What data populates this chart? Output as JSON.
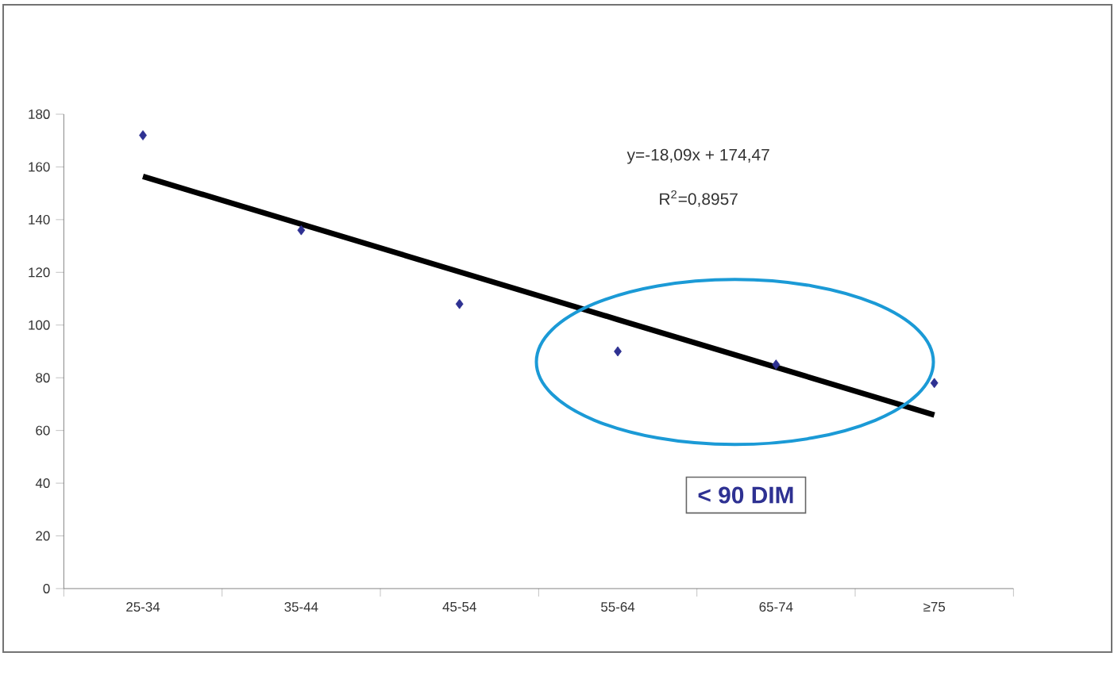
{
  "chart_data": {
    "type": "scatter",
    "categories": [
      "25-34",
      "35-44",
      "45-54",
      "55-64",
      "65-74",
      "≥75"
    ],
    "ylim": [
      0,
      180
    ],
    "yticks": [
      0,
      20,
      40,
      60,
      80,
      100,
      120,
      140,
      160,
      180
    ],
    "marker": "diamond",
    "grid": false,
    "series": [
      {
        "color": "#2e3192",
        "values": [
          172,
          136,
          108,
          90,
          85,
          78
        ]
      },
      {
        "type": "line",
        "marker": "none",
        "color": "#000000",
        "values": [
          156.4,
          138.3,
          120.2,
          102.1,
          84.0,
          65.9
        ]
      }
    ],
    "annotations": [
      "y=-18,09x + 174,47",
      "R$^{2}$=0,8957",
      "< 90 DIM"
    ]
  }
}
